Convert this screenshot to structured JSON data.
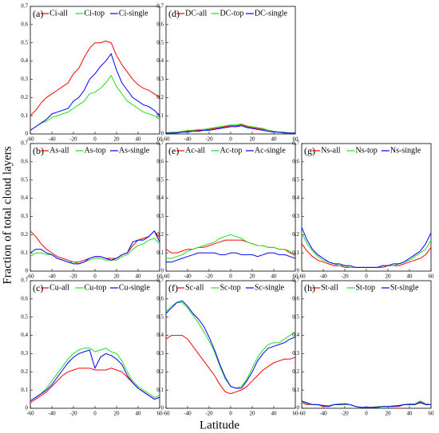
{
  "xlabel": "Latitude",
  "ylabel": "Fraction of total cloud layers",
  "chart_data": [
    {
      "type": "line",
      "panel": "(a)",
      "x": [
        -60,
        -55,
        -50,
        -45,
        -40,
        -35,
        -30,
        -25,
        -20,
        -15,
        -10,
        -5,
        0,
        5,
        10,
        15,
        20,
        25,
        30,
        35,
        40,
        45,
        50,
        55,
        60
      ],
      "xlim": [
        -60,
        60
      ],
      "xticks": [
        -60,
        -40,
        -20,
        0,
        20,
        40,
        60
      ],
      "ylim": [
        0,
        0.7
      ],
      "yticks": [
        0,
        0.1,
        0.2,
        0.3,
        0.4,
        0.5,
        0.6,
        0.7
      ],
      "series": [
        {
          "name": "Ci-all",
          "color": "#ff0000",
          "values": [
            0.1,
            0.13,
            0.17,
            0.2,
            0.22,
            0.24,
            0.26,
            0.28,
            0.33,
            0.36,
            0.42,
            0.47,
            0.5,
            0.5,
            0.51,
            0.5,
            0.43,
            0.38,
            0.34,
            0.3,
            0.27,
            0.25,
            0.24,
            0.22,
            0.2
          ]
        },
        {
          "name": "Ci-top",
          "color": "#22dd22",
          "values": [
            0.02,
            0.04,
            0.06,
            0.07,
            0.09,
            0.1,
            0.11,
            0.12,
            0.14,
            0.16,
            0.18,
            0.22,
            0.23,
            0.25,
            0.28,
            0.32,
            0.26,
            0.22,
            0.18,
            0.16,
            0.14,
            0.12,
            0.11,
            0.1,
            0.08
          ]
        },
        {
          "name": "Ci-single",
          "color": "#0000ff",
          "values": [
            0.02,
            0.04,
            0.06,
            0.08,
            0.11,
            0.12,
            0.13,
            0.14,
            0.18,
            0.2,
            0.24,
            0.3,
            0.33,
            0.37,
            0.4,
            0.44,
            0.35,
            0.28,
            0.24,
            0.2,
            0.18,
            0.16,
            0.15,
            0.13,
            0.1
          ]
        }
      ]
    },
    {
      "type": "line",
      "panel": "(b)",
      "x": [
        -60,
        -55,
        -50,
        -45,
        -40,
        -35,
        -30,
        -25,
        -20,
        -15,
        -10,
        -5,
        0,
        5,
        10,
        15,
        20,
        25,
        30,
        35,
        40,
        45,
        50,
        55,
        60
      ],
      "xlim": [
        -60,
        60
      ],
      "xticks": [
        -60,
        -40,
        -20,
        0,
        20,
        40,
        60
      ],
      "ylim": [
        0,
        0.7
      ],
      "yticks": [
        0,
        0.1,
        0.2,
        0.3,
        0.4,
        0.5,
        0.6,
        0.7
      ],
      "series": [
        {
          "name": "As-all",
          "color": "#ff0000",
          "values": [
            0.22,
            0.19,
            0.15,
            0.12,
            0.1,
            0.08,
            0.07,
            0.06,
            0.05,
            0.05,
            0.06,
            0.07,
            0.08,
            0.08,
            0.07,
            0.07,
            0.07,
            0.09,
            0.1,
            0.14,
            0.17,
            0.18,
            0.19,
            0.22,
            0.18
          ]
        },
        {
          "name": "As-top",
          "color": "#22dd22",
          "values": [
            0.08,
            0.1,
            0.1,
            0.09,
            0.09,
            0.07,
            0.06,
            0.05,
            0.05,
            0.04,
            0.05,
            0.06,
            0.07,
            0.07,
            0.06,
            0.06,
            0.06,
            0.08,
            0.09,
            0.12,
            0.14,
            0.15,
            0.17,
            0.18,
            0.15
          ]
        },
        {
          "name": "As-single",
          "color": "#0000ff",
          "values": [
            0.1,
            0.12,
            0.12,
            0.1,
            0.09,
            0.07,
            0.06,
            0.05,
            0.04,
            0.04,
            0.05,
            0.07,
            0.08,
            0.08,
            0.07,
            0.06,
            0.07,
            0.09,
            0.1,
            0.16,
            0.17,
            0.17,
            0.19,
            0.22,
            0.16
          ]
        }
      ]
    },
    {
      "type": "line",
      "panel": "(c)",
      "x": [
        -60,
        -55,
        -50,
        -45,
        -40,
        -35,
        -30,
        -25,
        -20,
        -15,
        -10,
        -5,
        0,
        5,
        10,
        15,
        20,
        25,
        30,
        35,
        40,
        45,
        50,
        55,
        60
      ],
      "xlim": [
        -60,
        60
      ],
      "xticks": [
        -60,
        -40,
        -20,
        0,
        20,
        40,
        60
      ],
      "ylim": [
        0,
        0.7
      ],
      "yticks": [
        0,
        0.1,
        0.2,
        0.3,
        0.4,
        0.5,
        0.6,
        0.7
      ],
      "series": [
        {
          "name": "Cu-all",
          "color": "#ff0000",
          "values": [
            0.03,
            0.05,
            0.07,
            0.09,
            0.12,
            0.15,
            0.18,
            0.2,
            0.21,
            0.22,
            0.22,
            0.22,
            0.21,
            0.21,
            0.21,
            0.22,
            0.21,
            0.2,
            0.17,
            0.14,
            0.11,
            0.09,
            0.07,
            0.05,
            0.06
          ]
        },
        {
          "name": "Cu-top",
          "color": "#22dd22",
          "values": [
            0.04,
            0.06,
            0.08,
            0.11,
            0.15,
            0.19,
            0.23,
            0.27,
            0.3,
            0.32,
            0.33,
            0.33,
            0.31,
            0.32,
            0.33,
            0.31,
            0.3,
            0.26,
            0.2,
            0.15,
            0.12,
            0.1,
            0.08,
            0.06,
            0.07
          ]
        },
        {
          "name": "Cu-single",
          "color": "#0000ff",
          "values": [
            0.04,
            0.06,
            0.08,
            0.1,
            0.13,
            0.17,
            0.21,
            0.25,
            0.28,
            0.3,
            0.31,
            0.32,
            0.22,
            0.28,
            0.3,
            0.29,
            0.27,
            0.24,
            0.18,
            0.14,
            0.11,
            0.09,
            0.07,
            0.05,
            0.06
          ]
        }
      ]
    },
    {
      "type": "line",
      "panel": "(d)",
      "x": [
        -60,
        -55,
        -50,
        -45,
        -40,
        -35,
        -30,
        -25,
        -20,
        -15,
        -10,
        -5,
        0,
        5,
        10,
        15,
        20,
        25,
        30,
        35,
        40,
        45,
        50,
        55,
        60
      ],
      "xlim": [
        -60,
        60
      ],
      "xticks": [
        -60,
        -40,
        -20,
        0,
        20,
        40,
        60
      ],
      "ylim": [
        0,
        0.7
      ],
      "yticks": [
        0,
        0.1,
        0.2,
        0.3,
        0.4,
        0.5,
        0.6,
        0.7
      ],
      "series": [
        {
          "name": "DC-all",
          "color": "#ff0000",
          "values": [
            0.005,
            0.005,
            0.01,
            0.01,
            0.015,
            0.02,
            0.02,
            0.02,
            0.025,
            0.03,
            0.035,
            0.04,
            0.045,
            0.045,
            0.05,
            0.04,
            0.035,
            0.03,
            0.025,
            0.02,
            0.015,
            0.01,
            0.01,
            0.005,
            0.005
          ]
        },
        {
          "name": "DC-top",
          "color": "#22dd22",
          "values": [
            0.005,
            0.01,
            0.01,
            0.015,
            0.02,
            0.02,
            0.025,
            0.025,
            0.03,
            0.035,
            0.04,
            0.045,
            0.05,
            0.05,
            0.055,
            0.045,
            0.04,
            0.035,
            0.03,
            0.02,
            0.015,
            0.01,
            0.01,
            0.005,
            0.005
          ]
        },
        {
          "name": "DC-single",
          "color": "#0000ff",
          "values": [
            0.005,
            0.005,
            0.005,
            0.01,
            0.01,
            0.015,
            0.015,
            0.02,
            0.02,
            0.025,
            0.03,
            0.035,
            0.04,
            0.04,
            0.045,
            0.035,
            0.03,
            0.025,
            0.02,
            0.015,
            0.01,
            0.01,
            0.005,
            0.005,
            0.005
          ]
        }
      ]
    },
    {
      "type": "line",
      "panel": "(e)",
      "x": [
        -60,
        -55,
        -50,
        -45,
        -40,
        -35,
        -30,
        -25,
        -20,
        -15,
        -10,
        -5,
        0,
        5,
        10,
        15,
        20,
        25,
        30,
        35,
        40,
        45,
        50,
        55,
        60
      ],
      "xlim": [
        -60,
        60
      ],
      "xticks": [
        -60,
        -40,
        -20,
        0,
        20,
        40,
        60
      ],
      "ylim": [
        0,
        0.7
      ],
      "yticks": [
        0,
        0.1,
        0.2,
        0.3,
        0.4,
        0.5,
        0.6,
        0.7
      ],
      "series": [
        {
          "name": "Ac-all",
          "color": "#ff0000",
          "values": [
            0.12,
            0.1,
            0.1,
            0.11,
            0.12,
            0.12,
            0.13,
            0.13,
            0.14,
            0.15,
            0.16,
            0.17,
            0.17,
            0.17,
            0.17,
            0.16,
            0.15,
            0.14,
            0.14,
            0.13,
            0.13,
            0.12,
            0.12,
            0.1,
            0.09
          ]
        },
        {
          "name": "Ac-top",
          "color": "#22dd22",
          "values": [
            0.07,
            0.07,
            0.08,
            0.09,
            0.11,
            0.12,
            0.13,
            0.14,
            0.15,
            0.16,
            0.18,
            0.19,
            0.2,
            0.19,
            0.18,
            0.16,
            0.15,
            0.14,
            0.14,
            0.13,
            0.13,
            0.12,
            0.12,
            0.11,
            0.08
          ]
        },
        {
          "name": "Ac-single",
          "color": "#0000ff",
          "values": [
            0.05,
            0.05,
            0.06,
            0.07,
            0.08,
            0.09,
            0.1,
            0.1,
            0.1,
            0.1,
            0.09,
            0.09,
            0.1,
            0.1,
            0.09,
            0.09,
            0.09,
            0.08,
            0.09,
            0.1,
            0.1,
            0.09,
            0.09,
            0.08,
            0.07
          ]
        }
      ]
    },
    {
      "type": "line",
      "panel": "(f)",
      "x": [
        -60,
        -55,
        -50,
        -45,
        -40,
        -35,
        -30,
        -25,
        -20,
        -15,
        -10,
        -5,
        0,
        5,
        10,
        15,
        20,
        25,
        30,
        35,
        40,
        45,
        50,
        55,
        60
      ],
      "xlim": [
        -60,
        60
      ],
      "xticks": [
        -60,
        -40,
        -20,
        0,
        20,
        40,
        60
      ],
      "ylim": [
        0,
        0.7
      ],
      "yticks": [
        0,
        0.1,
        0.2,
        0.3,
        0.4,
        0.5,
        0.6,
        0.7
      ],
      "series": [
        {
          "name": "Sc-all",
          "color": "#ff0000",
          "values": [
            0.38,
            0.4,
            0.4,
            0.4,
            0.38,
            0.34,
            0.3,
            0.26,
            0.22,
            0.18,
            0.13,
            0.09,
            0.08,
            0.09,
            0.1,
            0.12,
            0.15,
            0.18,
            0.21,
            0.23,
            0.25,
            0.26,
            0.27,
            0.27,
            0.28
          ]
        },
        {
          "name": "Sc-top",
          "color": "#22dd22",
          "values": [
            0.53,
            0.56,
            0.58,
            0.58,
            0.55,
            0.51,
            0.47,
            0.42,
            0.37,
            0.31,
            0.23,
            0.16,
            0.12,
            0.11,
            0.12,
            0.16,
            0.22,
            0.28,
            0.32,
            0.35,
            0.36,
            0.36,
            0.38,
            0.4,
            0.42
          ]
        },
        {
          "name": "Sc-single",
          "color": "#0000ff",
          "values": [
            0.52,
            0.55,
            0.58,
            0.59,
            0.56,
            0.52,
            0.49,
            0.45,
            0.39,
            0.32,
            0.24,
            0.17,
            0.12,
            0.11,
            0.11,
            0.15,
            0.2,
            0.26,
            0.3,
            0.33,
            0.34,
            0.35,
            0.36,
            0.38,
            0.39
          ]
        }
      ]
    },
    {
      "type": "line",
      "panel": "(g)",
      "x": [
        -60,
        -55,
        -50,
        -45,
        -40,
        -35,
        -30,
        -25,
        -20,
        -15,
        -10,
        -5,
        0,
        5,
        10,
        15,
        20,
        25,
        30,
        35,
        40,
        45,
        50,
        55,
        60
      ],
      "xlim": [
        -60,
        60
      ],
      "xticks": [
        -60,
        -40,
        -20,
        0,
        20,
        40,
        60
      ],
      "ylim": [
        0,
        0.7
      ],
      "yticks": [
        0,
        0.1,
        0.2,
        0.3,
        0.4,
        0.5,
        0.6,
        0.7
      ],
      "series": [
        {
          "name": "Ns-all",
          "color": "#ff0000",
          "values": [
            0.15,
            0.11,
            0.08,
            0.06,
            0.05,
            0.04,
            0.03,
            0.03,
            0.02,
            0.02,
            0.02,
            0.02,
            0.02,
            0.02,
            0.02,
            0.02,
            0.03,
            0.03,
            0.03,
            0.04,
            0.05,
            0.06,
            0.07,
            0.09,
            0.13
          ]
        },
        {
          "name": "Ns-top",
          "color": "#22dd22",
          "values": [
            0.21,
            0.15,
            0.11,
            0.08,
            0.06,
            0.05,
            0.04,
            0.03,
            0.03,
            0.02,
            0.02,
            0.02,
            0.02,
            0.02,
            0.02,
            0.03,
            0.03,
            0.03,
            0.04,
            0.05,
            0.06,
            0.08,
            0.1,
            0.12,
            0.17
          ]
        },
        {
          "name": "Ns-single",
          "color": "#0000ff",
          "values": [
            0.24,
            0.17,
            0.12,
            0.09,
            0.07,
            0.05,
            0.04,
            0.04,
            0.03,
            0.03,
            0.02,
            0.02,
            0.02,
            0.02,
            0.02,
            0.03,
            0.03,
            0.04,
            0.04,
            0.05,
            0.07,
            0.09,
            0.11,
            0.15,
            0.21
          ]
        }
      ]
    },
    {
      "type": "line",
      "panel": "(h)",
      "x": [
        -60,
        -55,
        -50,
        -45,
        -40,
        -35,
        -30,
        -25,
        -20,
        -15,
        -10,
        -5,
        0,
        5,
        10,
        15,
        20,
        25,
        30,
        35,
        40,
        45,
        50,
        55,
        60
      ],
      "xlim": [
        -60,
        60
      ],
      "xticks": [
        -60,
        -40,
        -20,
        0,
        20,
        40,
        60
      ],
      "ylim": [
        0,
        0.7
      ],
      "yticks": [
        0,
        0.1,
        0.2,
        0.3,
        0.4,
        0.5,
        0.6,
        0.7
      ],
      "series": [
        {
          "name": "St-all",
          "color": "#ff0000",
          "values": [
            0.03,
            0.02,
            0.02,
            0.02,
            0.01,
            0.01,
            0.02,
            0.02,
            0.02,
            0.02,
            0.01,
            0.005,
            0.005,
            0.005,
            0.005,
            0.01,
            0.01,
            0.01,
            0.01,
            0.02,
            0.02,
            0.02,
            0.03,
            0.02,
            0.02
          ]
        },
        {
          "name": "St-top",
          "color": "#22dd22",
          "values": [
            0.035,
            0.025,
            0.02,
            0.02,
            0.015,
            0.015,
            0.02,
            0.025,
            0.02,
            0.02,
            0.01,
            0.005,
            0.005,
            0.005,
            0.01,
            0.01,
            0.01,
            0.015,
            0.015,
            0.02,
            0.025,
            0.025,
            0.04,
            0.025,
            0.02
          ]
        },
        {
          "name": "St-single",
          "color": "#0000ff",
          "values": [
            0.04,
            0.03,
            0.02,
            0.02,
            0.015,
            0.01,
            0.02,
            0.02,
            0.025,
            0.02,
            0.01,
            0.005,
            0.005,
            0.005,
            0.005,
            0.01,
            0.01,
            0.01,
            0.015,
            0.02,
            0.02,
            0.02,
            0.035,
            0.02,
            0.02
          ]
        }
      ]
    }
  ]
}
